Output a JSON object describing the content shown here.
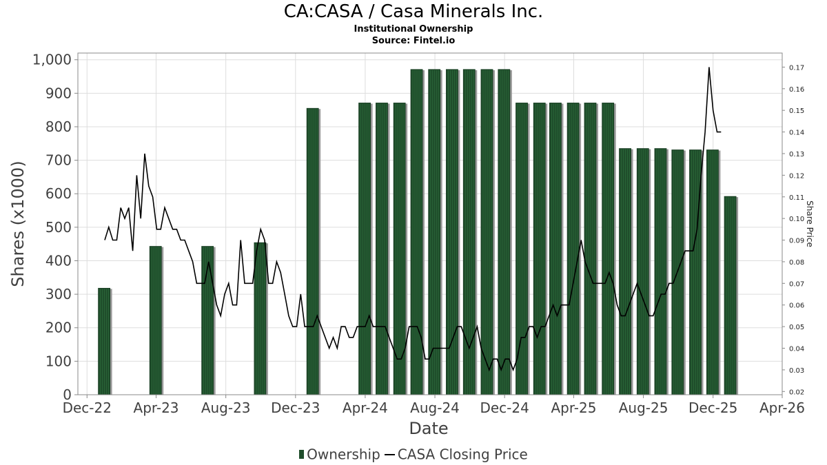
{
  "chart_data": {
    "type": "bar+line",
    "title": "CA:CASA / Casa Minerals Inc.",
    "subtitle": "Institutional Ownership",
    "source": "Source: Fintel.io",
    "xlabel": "Date",
    "ylabel": "Shares (x1000)",
    "y2label": "Share Price",
    "ylim": [
      0,
      1020
    ],
    "y2lim": [
      0.0185,
      0.1765
    ],
    "xlim": [
      "2022-11-15",
      "2026-04-01"
    ],
    "x_ticks": [
      {
        "date": "2022-12-01",
        "label": "Dec-22"
      },
      {
        "date": "2023-04-01",
        "label": "Apr-23"
      },
      {
        "date": "2023-08-01",
        "label": "Aug-23"
      },
      {
        "date": "2023-12-01",
        "label": "Dec-23"
      },
      {
        "date": "2024-04-01",
        "label": "Apr-24"
      },
      {
        "date": "2024-08-01",
        "label": "Aug-24"
      },
      {
        "date": "2024-12-01",
        "label": "Dec-24"
      },
      {
        "date": "2025-04-01",
        "label": "Apr-25"
      },
      {
        "date": "2025-08-01",
        "label": "Aug-25"
      },
      {
        "date": "2025-12-01",
        "label": "Dec-25"
      },
      {
        "date": "2026-04-01",
        "label": "Apr-26"
      }
    ],
    "y_ticks": [
      0,
      100,
      200,
      300,
      400,
      500,
      600,
      700,
      800,
      900,
      1000
    ],
    "y_tick_labels": [
      "0",
      "100",
      "200",
      "300",
      "400",
      "500",
      "600",
      "700",
      "800",
      "900",
      "1,000"
    ],
    "y2_ticks": [
      0.02,
      0.03,
      0.04,
      0.05,
      0.06,
      0.07,
      0.08,
      0.09,
      0.1,
      0.11,
      0.12,
      0.13,
      0.14,
      0.15,
      0.16,
      0.17
    ],
    "y2_tick_labels": [
      "0.02",
      "0.03",
      "0.04",
      "0.05",
      "0.06",
      "0.07",
      "0.08",
      "0.09",
      "0.10",
      "0.11",
      "0.12",
      "0.13",
      "0.14",
      "0.15",
      "0.16",
      "0.17"
    ],
    "series": [
      {
        "name": "Ownership",
        "kind": "bar",
        "color": "#1f4d2b",
        "points": [
          {
            "date": "2022-12-31",
            "value": 318
          },
          {
            "date": "2023-03-31",
            "value": 443
          },
          {
            "date": "2023-06-30",
            "value": 443
          },
          {
            "date": "2023-09-30",
            "value": 454
          },
          {
            "date": "2023-12-31",
            "value": 855
          },
          {
            "date": "2024-03-31",
            "value": 871
          },
          {
            "date": "2024-04-30",
            "value": 871
          },
          {
            "date": "2024-05-31",
            "value": 871
          },
          {
            "date": "2024-06-30",
            "value": 971
          },
          {
            "date": "2024-07-31",
            "value": 971
          },
          {
            "date": "2024-08-31",
            "value": 971
          },
          {
            "date": "2024-09-30",
            "value": 971
          },
          {
            "date": "2024-10-31",
            "value": 971
          },
          {
            "date": "2024-11-30",
            "value": 971
          },
          {
            "date": "2024-12-31",
            "value": 871
          },
          {
            "date": "2025-01-31",
            "value": 871
          },
          {
            "date": "2025-02-28",
            "value": 871
          },
          {
            "date": "2025-03-31",
            "value": 871
          },
          {
            "date": "2025-04-30",
            "value": 871
          },
          {
            "date": "2025-05-31",
            "value": 871
          },
          {
            "date": "2025-06-30",
            "value": 735
          },
          {
            "date": "2025-07-31",
            "value": 735
          },
          {
            "date": "2025-08-31",
            "value": 735
          },
          {
            "date": "2025-09-30",
            "value": 731
          },
          {
            "date": "2025-10-31",
            "value": 731
          },
          {
            "date": "2025-11-30",
            "value": 731
          },
          {
            "date": "2025-12-31",
            "value": 592
          }
        ]
      },
      {
        "name": "CASA Closing Price",
        "kind": "line",
        "color": "#000000",
        "points": [
          [
            "2023-01-01",
            0.09
          ],
          [
            "2023-01-08",
            0.096
          ],
          [
            "2023-01-15",
            0.09
          ],
          [
            "2023-01-22",
            0.09
          ],
          [
            "2023-01-29",
            0.105
          ],
          [
            "2023-02-05",
            0.1
          ],
          [
            "2023-02-12",
            0.105
          ],
          [
            "2023-02-19",
            0.085
          ],
          [
            "2023-02-26",
            0.12
          ],
          [
            "2023-03-05",
            0.1
          ],
          [
            "2023-03-12",
            0.13
          ],
          [
            "2023-03-19",
            0.115
          ],
          [
            "2023-03-26",
            0.11
          ],
          [
            "2023-04-02",
            0.095
          ],
          [
            "2023-04-09",
            0.095
          ],
          [
            "2023-04-16",
            0.105
          ],
          [
            "2023-04-23",
            0.1
          ],
          [
            "2023-04-30",
            0.095
          ],
          [
            "2023-05-07",
            0.095
          ],
          [
            "2023-05-14",
            0.09
          ],
          [
            "2023-05-21",
            0.09
          ],
          [
            "2023-05-28",
            0.085
          ],
          [
            "2023-06-04",
            0.08
          ],
          [
            "2023-06-11",
            0.07
          ],
          [
            "2023-06-18",
            0.07
          ],
          [
            "2023-06-25",
            0.07
          ],
          [
            "2023-07-02",
            0.08
          ],
          [
            "2023-07-09",
            0.07
          ],
          [
            "2023-07-16",
            0.06
          ],
          [
            "2023-07-23",
            0.055
          ],
          [
            "2023-07-30",
            0.065
          ],
          [
            "2023-08-06",
            0.07
          ],
          [
            "2023-08-13",
            0.06
          ],
          [
            "2023-08-20",
            0.06
          ],
          [
            "2023-08-27",
            0.09
          ],
          [
            "2023-09-03",
            0.07
          ],
          [
            "2023-09-10",
            0.07
          ],
          [
            "2023-09-17",
            0.07
          ],
          [
            "2023-09-24",
            0.085
          ],
          [
            "2023-10-01",
            0.095
          ],
          [
            "2023-10-08",
            0.09
          ],
          [
            "2023-10-15",
            0.07
          ],
          [
            "2023-10-22",
            0.07
          ],
          [
            "2023-10-29",
            0.08
          ],
          [
            "2023-11-05",
            0.075
          ],
          [
            "2023-11-12",
            0.065
          ],
          [
            "2023-11-19",
            0.055
          ],
          [
            "2023-11-26",
            0.05
          ],
          [
            "2023-12-03",
            0.05
          ],
          [
            "2023-12-10",
            0.065
          ],
          [
            "2023-12-17",
            0.05
          ],
          [
            "2023-12-24",
            0.05
          ],
          [
            "2024-01-01",
            0.05
          ],
          [
            "2024-01-08",
            0.055
          ],
          [
            "2024-01-15",
            0.05
          ],
          [
            "2024-01-22",
            0.045
          ],
          [
            "2024-01-29",
            0.04
          ],
          [
            "2024-02-05",
            0.045
          ],
          [
            "2024-02-12",
            0.04
          ],
          [
            "2024-02-19",
            0.05
          ],
          [
            "2024-02-26",
            0.05
          ],
          [
            "2024-03-04",
            0.045
          ],
          [
            "2024-03-11",
            0.045
          ],
          [
            "2024-03-18",
            0.05
          ],
          [
            "2024-03-25",
            0.05
          ],
          [
            "2024-04-01",
            0.05
          ],
          [
            "2024-04-08",
            0.055
          ],
          [
            "2024-04-15",
            0.05
          ],
          [
            "2024-04-22",
            0.05
          ],
          [
            "2024-04-29",
            0.05
          ],
          [
            "2024-05-06",
            0.05
          ],
          [
            "2024-05-13",
            0.045
          ],
          [
            "2024-05-20",
            0.04
          ],
          [
            "2024-05-27",
            0.035
          ],
          [
            "2024-06-03",
            0.035
          ],
          [
            "2024-06-10",
            0.04
          ],
          [
            "2024-06-17",
            0.05
          ],
          [
            "2024-06-24",
            0.05
          ],
          [
            "2024-07-01",
            0.05
          ],
          [
            "2024-07-08",
            0.045
          ],
          [
            "2024-07-15",
            0.035
          ],
          [
            "2024-07-22",
            0.035
          ],
          [
            "2024-07-29",
            0.04
          ],
          [
            "2024-08-05",
            0.04
          ],
          [
            "2024-08-12",
            0.04
          ],
          [
            "2024-08-19",
            0.04
          ],
          [
            "2024-08-26",
            0.04
          ],
          [
            "2024-09-02",
            0.045
          ],
          [
            "2024-09-09",
            0.05
          ],
          [
            "2024-09-16",
            0.05
          ],
          [
            "2024-09-23",
            0.045
          ],
          [
            "2024-09-30",
            0.04
          ],
          [
            "2024-10-07",
            0.045
          ],
          [
            "2024-10-14",
            0.05
          ],
          [
            "2024-10-21",
            0.04
          ],
          [
            "2024-10-28",
            0.035
          ],
          [
            "2024-11-04",
            0.03
          ],
          [
            "2024-11-11",
            0.035
          ],
          [
            "2024-11-18",
            0.035
          ],
          [
            "2024-11-25",
            0.03
          ],
          [
            "2024-12-02",
            0.035
          ],
          [
            "2024-12-09",
            0.035
          ],
          [
            "2024-12-16",
            0.03
          ],
          [
            "2024-12-23",
            0.035
          ],
          [
            "2024-12-30",
            0.045
          ],
          [
            "2025-01-06",
            0.045
          ],
          [
            "2025-01-13",
            0.05
          ],
          [
            "2025-01-20",
            0.05
          ],
          [
            "2025-01-27",
            0.045
          ],
          [
            "2025-02-03",
            0.05
          ],
          [
            "2025-02-10",
            0.05
          ],
          [
            "2025-02-17",
            0.055
          ],
          [
            "2025-02-24",
            0.06
          ],
          [
            "2025-03-03",
            0.055
          ],
          [
            "2025-03-10",
            0.06
          ],
          [
            "2025-03-17",
            0.06
          ],
          [
            "2025-03-24",
            0.06
          ],
          [
            "2025-03-31",
            0.07
          ],
          [
            "2025-04-07",
            0.08
          ],
          [
            "2025-04-14",
            0.09
          ],
          [
            "2025-04-21",
            0.08
          ],
          [
            "2025-04-28",
            0.075
          ],
          [
            "2025-05-05",
            0.07
          ],
          [
            "2025-05-12",
            0.07
          ],
          [
            "2025-05-19",
            0.07
          ],
          [
            "2025-05-26",
            0.07
          ],
          [
            "2025-06-02",
            0.075
          ],
          [
            "2025-06-09",
            0.07
          ],
          [
            "2025-06-16",
            0.06
          ],
          [
            "2025-06-23",
            0.055
          ],
          [
            "2025-06-30",
            0.055
          ],
          [
            "2025-07-07",
            0.06
          ],
          [
            "2025-07-14",
            0.065
          ],
          [
            "2025-07-21",
            0.07
          ],
          [
            "2025-07-28",
            0.065
          ],
          [
            "2025-08-04",
            0.06
          ],
          [
            "2025-08-11",
            0.055
          ],
          [
            "2025-08-18",
            0.055
          ],
          [
            "2025-08-25",
            0.06
          ],
          [
            "2025-09-01",
            0.065
          ],
          [
            "2025-09-08",
            0.065
          ],
          [
            "2025-09-15",
            0.07
          ],
          [
            "2025-09-22",
            0.07
          ],
          [
            "2025-09-29",
            0.075
          ],
          [
            "2025-10-06",
            0.08
          ],
          [
            "2025-10-13",
            0.085
          ],
          [
            "2025-10-20",
            0.085
          ],
          [
            "2025-10-27",
            0.085
          ],
          [
            "2025-11-03",
            0.095
          ],
          [
            "2025-11-10",
            0.12
          ],
          [
            "2025-11-17",
            0.14
          ],
          [
            "2025-11-24",
            0.17
          ],
          [
            "2025-12-01",
            0.15
          ],
          [
            "2025-12-08",
            0.14
          ],
          [
            "2025-12-15",
            0.14
          ]
        ]
      }
    ],
    "legend": [
      "Ownership",
      "CASA Closing Price"
    ],
    "legend_position": "bottom-center",
    "grid": true
  }
}
